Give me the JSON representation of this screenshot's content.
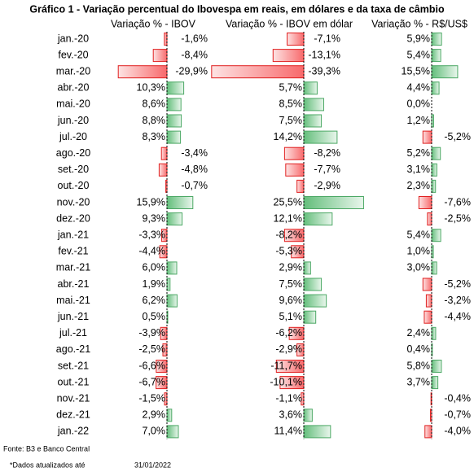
{
  "title": "Gráfico 1 - Variação percentual do Ibovespa em reais, em dólares e da taxa de câmbio",
  "columns": [
    "Variação % - IBOV",
    "Variação % - IBOV em dólar",
    "Variação % - R$/US$"
  ],
  "rows": [
    {
      "label": "jan.-20",
      "values": [
        -1.6,
        -7.1,
        5.9
      ],
      "value_labels": [
        "-1,6%",
        "-7,1%",
        "5,9%"
      ]
    },
    {
      "label": "fev.-20",
      "values": [
        -8.4,
        -13.1,
        5.4
      ],
      "value_labels": [
        "-8,4%",
        "-13,1%",
        "5,4%"
      ]
    },
    {
      "label": "mar.-20",
      "values": [
        -29.9,
        -39.3,
        15.5
      ],
      "value_labels": [
        "-29,9%",
        "-39,3%",
        "15,5%"
      ]
    },
    {
      "label": "abr.-20",
      "values": [
        10.3,
        5.7,
        4.4
      ],
      "value_labels": [
        "10,3%",
        "5,7%",
        "4,4%"
      ]
    },
    {
      "label": "mai.-20",
      "values": [
        8.6,
        8.5,
        0.0
      ],
      "value_labels": [
        "8,6%",
        "8,5%",
        "0,0%"
      ]
    },
    {
      "label": "jun.-20",
      "values": [
        8.8,
        7.5,
        1.2
      ],
      "value_labels": [
        "8,8%",
        "7,5%",
        "1,2%"
      ]
    },
    {
      "label": "jul.-20",
      "values": [
        8.3,
        14.2,
        -5.2
      ],
      "value_labels": [
        "8,3%",
        "14,2%",
        "-5,2%"
      ]
    },
    {
      "label": "ago.-20",
      "values": [
        -3.4,
        -8.2,
        5.2
      ],
      "value_labels": [
        "-3,4%",
        "-8,2%",
        "5,2%"
      ]
    },
    {
      "label": "set.-20",
      "values": [
        -4.8,
        -7.7,
        3.1
      ],
      "value_labels": [
        "-4,8%",
        "-7,7%",
        "3,1%"
      ]
    },
    {
      "label": "out.-20",
      "values": [
        -0.7,
        -2.9,
        2.3
      ],
      "value_labels": [
        "-0,7%",
        "-2,9%",
        "2,3%"
      ]
    },
    {
      "label": "nov.-20",
      "values": [
        15.9,
        25.5,
        -7.6
      ],
      "value_labels": [
        "15,9%",
        "25,5%",
        "-7,6%"
      ]
    },
    {
      "label": "dez.-20",
      "values": [
        9.3,
        12.1,
        -2.5
      ],
      "value_labels": [
        "9,3%",
        "12,1%",
        "-2,5%"
      ]
    },
    {
      "label": "jan.-21",
      "values": [
        -3.3,
        -8.2,
        5.4
      ],
      "value_labels": [
        "-3,3%",
        "-8,2%",
        "5,4%"
      ]
    },
    {
      "label": "fev.-21",
      "values": [
        -4.4,
        -5.3,
        1.0
      ],
      "value_labels": [
        "-4,4%",
        "-5,3%",
        "1,0%"
      ]
    },
    {
      "label": "mar.-21",
      "values": [
        6.0,
        2.9,
        3.0
      ],
      "value_labels": [
        "6,0%",
        "2,9%",
        "3,0%"
      ]
    },
    {
      "label": "abr.-21",
      "values": [
        1.9,
        7.5,
        -5.2
      ],
      "value_labels": [
        "1,9%",
        "7,5%",
        "-5,2%"
      ]
    },
    {
      "label": "mai.-21",
      "values": [
        6.2,
        9.6,
        -3.2
      ],
      "value_labels": [
        "6,2%",
        "9,6%",
        "-3,2%"
      ]
    },
    {
      "label": "jun.-21",
      "values": [
        0.5,
        5.1,
        -4.4
      ],
      "value_labels": [
        "0,5%",
        "5,1%",
        "-4,4%"
      ]
    },
    {
      "label": "jul.-21",
      "values": [
        -3.9,
        -6.2,
        2.4
      ],
      "value_labels": [
        "-3,9%",
        "-6,2%",
        "2,4%"
      ]
    },
    {
      "label": "ago.-21",
      "values": [
        -2.5,
        -2.9,
        0.4
      ],
      "value_labels": [
        "-2,5%",
        "-2,9%",
        "0,4%"
      ]
    },
    {
      "label": "set.-21",
      "values": [
        -6.6,
        -11.7,
        5.8
      ],
      "value_labels": [
        "-6,6%",
        "-11,7%",
        "5,8%"
      ]
    },
    {
      "label": "out.-21",
      "values": [
        -6.7,
        -10.1,
        3.7
      ],
      "value_labels": [
        "-6,7%",
        "-10,1%",
        "3,7%"
      ]
    },
    {
      "label": "nov.-21",
      "values": [
        -1.5,
        -1.1,
        -0.4
      ],
      "value_labels": [
        "-1,5%",
        "-1,1%",
        "-0,4%"
      ]
    },
    {
      "label": "dez.-21",
      "values": [
        2.9,
        3.6,
        -0.7
      ],
      "value_labels": [
        "2,9%",
        "3,6%",
        "-0,7%"
      ]
    },
    {
      "label": "jan.-22",
      "values": [
        7.0,
        11.4,
        -4.0
      ],
      "value_labels": [
        "7,0%",
        "11,4%",
        "-4,0%"
      ]
    }
  ],
  "source": "Fonte: B3 e Banco Central",
  "note": "*Dados atualizados até",
  "date": "31/01/2022"
}
